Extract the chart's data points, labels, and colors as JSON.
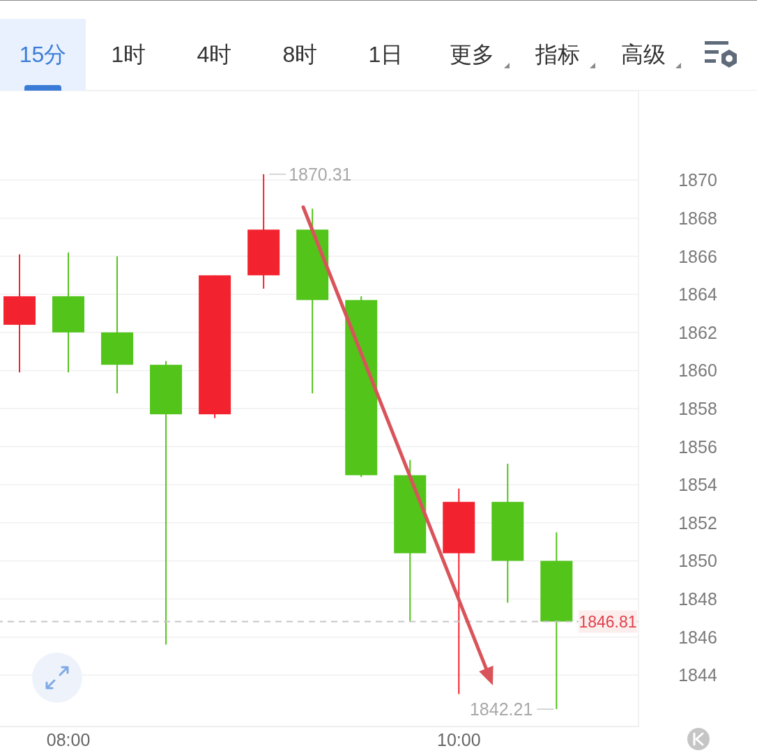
{
  "chart_data": {
    "type": "candlestick",
    "x": [
      7.75,
      8,
      8.25,
      8.5,
      8.75,
      9,
      9.25,
      9.5,
      9.75,
      10,
      10.25,
      10.5
    ],
    "ohlc": [
      [
        1862.4,
        1866.1,
        1859.9,
        1863.9
      ],
      [
        1863.9,
        1866.2,
        1859.9,
        1862.0
      ],
      [
        1862.0,
        1866.0,
        1858.8,
        1860.3
      ],
      [
        1860.3,
        1860.5,
        1845.6,
        1857.7
      ],
      [
        1857.7,
        1865.0,
        1857.5,
        1865.0
      ],
      [
        1865.0,
        1870.31,
        1864.3,
        1867.4
      ],
      [
        1867.4,
        1868.5,
        1858.8,
        1863.7
      ],
      [
        1863.7,
        1863.9,
        1854.4,
        1854.5
      ],
      [
        1854.5,
        1855.3,
        1846.8,
        1850.4
      ],
      [
        1850.4,
        1853.8,
        1843.0,
        1853.1
      ],
      [
        1853.1,
        1855.1,
        1847.8,
        1850.0
      ],
      [
        1850.0,
        1851.5,
        1842.21,
        1846.81
      ]
    ],
    "colors": [
      "#f2222f",
      "#52c41a",
      "#52c41a",
      "#52c41a",
      "#f2222f",
      "#f2222f",
      "#52c41a",
      "#52c41a",
      "#52c41a",
      "#f2222f",
      "#52c41a",
      "#52c41a"
    ],
    "xlim": [
      7.65,
      10.92
    ],
    "xticks": [
      {
        "value": 8,
        "label": "08:00"
      },
      {
        "value": 10,
        "label": "10:00"
      }
    ],
    "ylim": [
      1841.3,
      1874.7
    ],
    "yticks": [
      1844,
      1846,
      1848,
      1850,
      1852,
      1854,
      1856,
      1858,
      1860,
      1862,
      1864,
      1866,
      1868,
      1870
    ],
    "grid": "y",
    "ref_lines": [
      {
        "axis": "y",
        "value": 1846.81,
        "label": "1846.81",
        "color": "#c6c6c6",
        "line_style": "dashed"
      }
    ],
    "annotations": [
      "15分",
      "1时",
      "4时",
      "8时",
      "1日",
      "更多",
      "指标",
      "高级",
      {
        "text": "1870.31",
        "x": 9,
        "y": 1870.31
      },
      {
        "text": "1842.21",
        "x": 10.5,
        "y": 1842.21
      }
    ]
  }
}
